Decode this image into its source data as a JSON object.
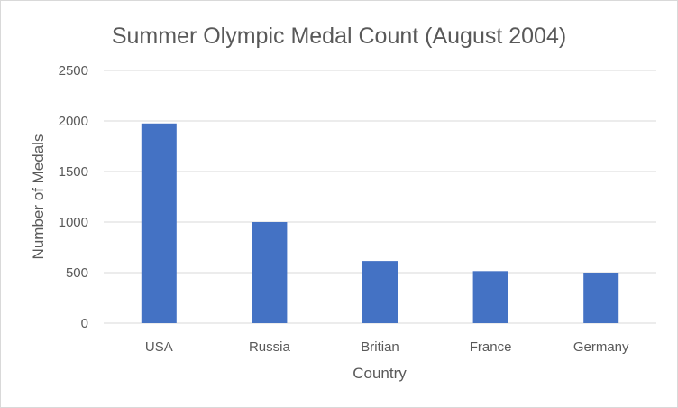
{
  "chart_data": {
    "type": "bar",
    "title": "Summer Olympic Medal Count (August 2004)",
    "xlabel": "Country",
    "ylabel": "Number of Medals",
    "categories": [
      "USA",
      "Russia",
      "Britian",
      "France",
      "Germany"
    ],
    "values": [
      1975,
      1000,
      615,
      515,
      500
    ],
    "ylim": [
      0,
      2500
    ],
    "yticks": [
      0,
      500,
      1000,
      1500,
      2000,
      2500
    ],
    "grid": true,
    "legend": "none",
    "colors": {
      "bar": "#4472c4",
      "grid": "#d9d9d9",
      "text": "#595959"
    }
  }
}
